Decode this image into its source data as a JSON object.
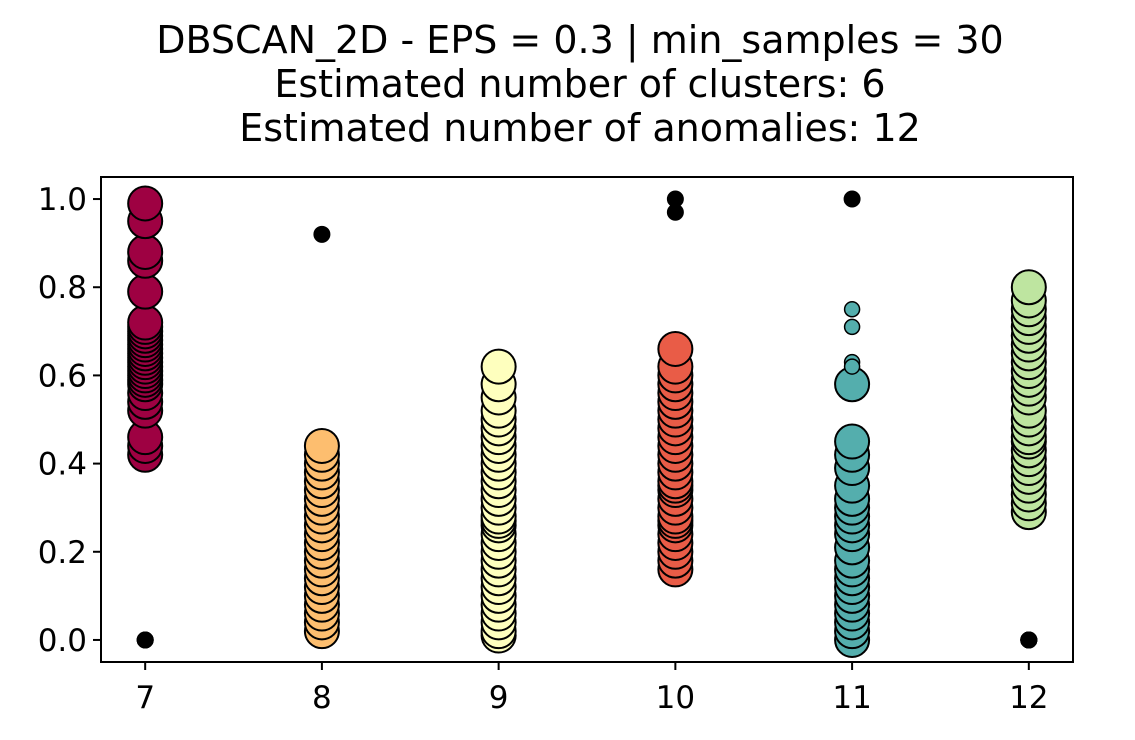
{
  "chart_data": {
    "type": "scatter",
    "title_lines": [
      "DBSCAN_2D - EPS = 0.3 | min_samples = 30",
      "Estimated number of clusters: 6",
      "Estimated number of anomalies: 12"
    ],
    "xlabel": "",
    "ylabel": "",
    "xlim": [
      6.75,
      12.25
    ],
    "ylim": [
      -0.05,
      1.05
    ],
    "x_ticks": [
      7,
      8,
      9,
      10,
      11,
      12
    ],
    "y_ticks": [
      0.0,
      0.2,
      0.4,
      0.6,
      0.8,
      1.0
    ],
    "y_tick_labels": [
      "0.0",
      "0.2",
      "0.4",
      "0.6",
      "0.8",
      "1.0"
    ],
    "grid": false,
    "legend": "none",
    "clusters": [
      {
        "x": 7,
        "color": "#9e0142",
        "y": [
          0.42,
          0.44,
          0.46,
          0.52,
          0.54,
          0.56,
          0.58,
          0.59,
          0.6,
          0.61,
          0.62,
          0.63,
          0.64,
          0.65,
          0.66,
          0.67,
          0.68,
          0.69,
          0.7,
          0.71,
          0.72,
          0.79,
          0.86,
          0.88,
          0.95,
          0.99
        ]
      },
      {
        "x": 8,
        "color": "#fdbe6f",
        "y": [
          0.02,
          0.04,
          0.06,
          0.08,
          0.1,
          0.12,
          0.14,
          0.16,
          0.18,
          0.2,
          0.22,
          0.24,
          0.26,
          0.28,
          0.3,
          0.32,
          0.34,
          0.36,
          0.38,
          0.4,
          0.42,
          0.44
        ]
      },
      {
        "x": 9,
        "color": "#feffbe",
        "y": [
          0.01,
          0.02,
          0.04,
          0.06,
          0.08,
          0.1,
          0.12,
          0.14,
          0.16,
          0.18,
          0.2,
          0.22,
          0.24,
          0.26,
          0.27,
          0.28,
          0.3,
          0.32,
          0.34,
          0.36,
          0.38,
          0.4,
          0.42,
          0.44,
          0.46,
          0.48,
          0.5,
          0.52,
          0.55,
          0.58,
          0.62
        ]
      },
      {
        "x": 10,
        "color": "#e95c47",
        "y": [
          0.16,
          0.18,
          0.2,
          0.22,
          0.24,
          0.26,
          0.27,
          0.28,
          0.3,
          0.32,
          0.34,
          0.35,
          0.36,
          0.38,
          0.4,
          0.42,
          0.44,
          0.46,
          0.48,
          0.5,
          0.52,
          0.54,
          0.56,
          0.58,
          0.6,
          0.62,
          0.66
        ]
      },
      {
        "x": 11,
        "color": "#54aead",
        "y": [
          0.0,
          0.02,
          0.04,
          0.06,
          0.08,
          0.1,
          0.12,
          0.14,
          0.16,
          0.18,
          0.21,
          0.24,
          0.26,
          0.28,
          0.3,
          0.32,
          0.35,
          0.39,
          0.42,
          0.45,
          0.58
        ]
      },
      {
        "x": 12,
        "color": "#bee5a0",
        "y": [
          0.29,
          0.31,
          0.33,
          0.35,
          0.37,
          0.39,
          0.41,
          0.43,
          0.45,
          0.46,
          0.48,
          0.5,
          0.52,
          0.55,
          0.57,
          0.59,
          0.61,
          0.63,
          0.65,
          0.67,
          0.69,
          0.71,
          0.73,
          0.75,
          0.77,
          0.8
        ]
      }
    ],
    "minor_points": [
      {
        "x": 11,
        "y": 0.75,
        "color": "#54aead"
      },
      {
        "x": 11,
        "y": 0.71,
        "color": "#54aead"
      },
      {
        "x": 11,
        "y": 0.63,
        "color": "#54aead"
      },
      {
        "x": 11,
        "y": 0.62,
        "color": "#54aead"
      },
      {
        "x": 12,
        "y": 0.0,
        "color": "#bee5a0"
      }
    ],
    "anomalies": {
      "color": "#000000",
      "points": [
        {
          "x": 7,
          "y": 0.0
        },
        {
          "x": 7,
          "y": 0.0
        },
        {
          "x": 7,
          "y": 0.0
        },
        {
          "x": 8,
          "y": 0.92
        },
        {
          "x": 10,
          "y": 1.0
        },
        {
          "x": 10,
          "y": 0.97
        },
        {
          "x": 11,
          "y": 1.0
        },
        {
          "x": 12,
          "y": 0.0
        },
        {
          "x": 12,
          "y": 0.0
        },
        {
          "x": 12,
          "y": 0.0
        },
        {
          "x": 12,
          "y": 0.0
        },
        {
          "x": 12,
          "y": 0.0
        }
      ]
    }
  }
}
